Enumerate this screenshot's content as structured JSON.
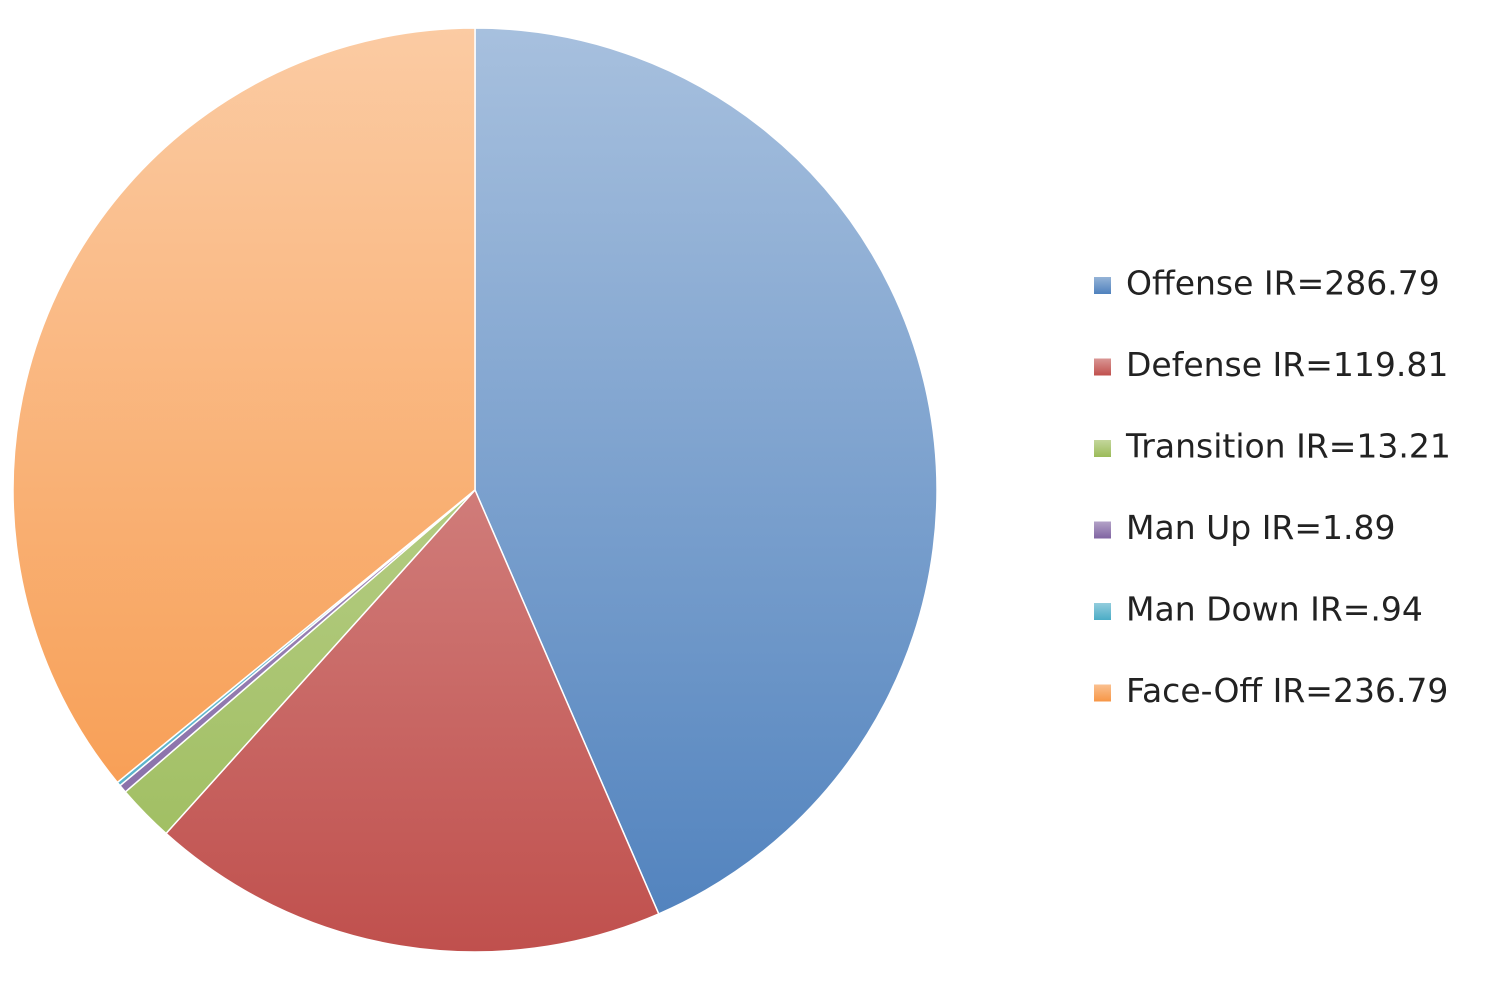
{
  "chart_data": {
    "type": "pie",
    "categories": [
      "Offense IR=286.79",
      "Defense IR=119.81",
      "Transition IR=13.21",
      "Man Up IR=1.89",
      "Man Down IR=.94",
      "Face-Off IR=236.79"
    ],
    "values": [
      286.79,
      119.81,
      13.21,
      1.89,
      0.94,
      236.79
    ],
    "colors": [
      "#4f81bd",
      "#c0504d",
      "#9bbb59",
      "#8064a2",
      "#4bacc6",
      "#f79646"
    ],
    "legend": "right"
  }
}
